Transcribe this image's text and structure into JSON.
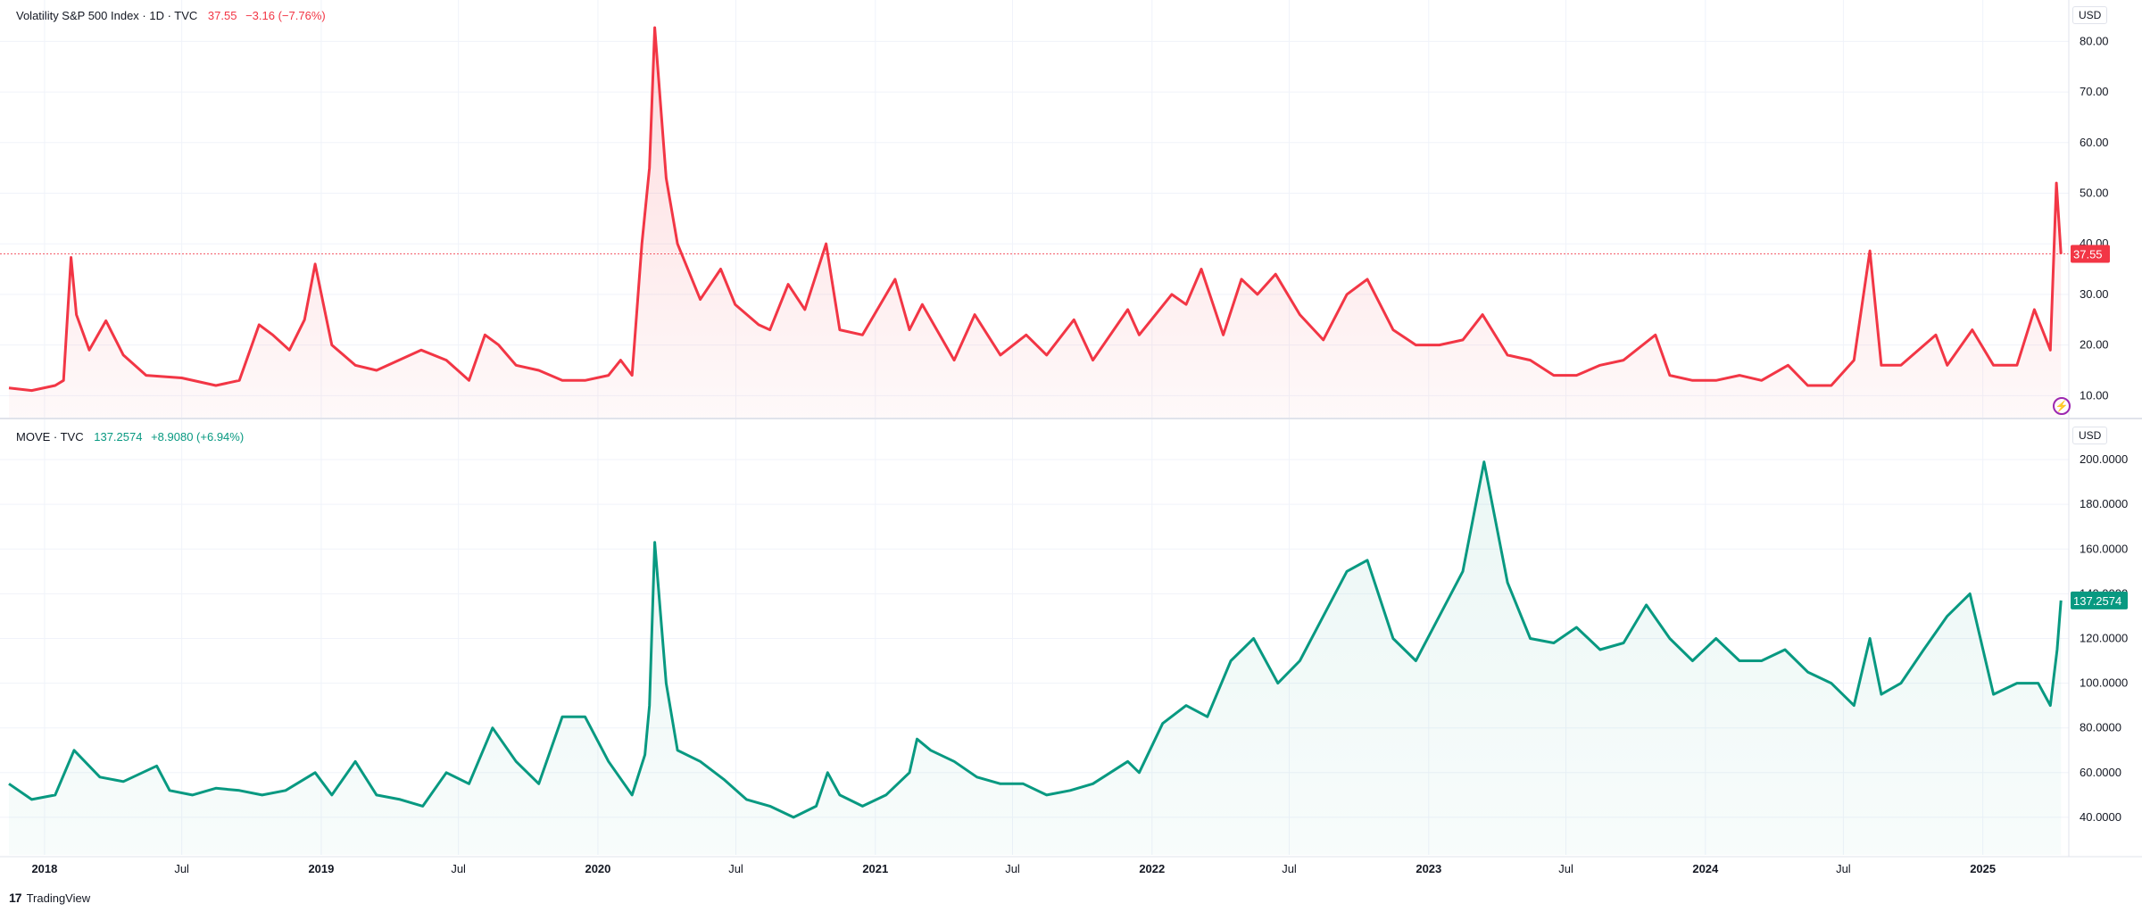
{
  "colors": {
    "vix": "#f23645",
    "move": "#089981",
    "grid": "#f0f3fa",
    "axis_text": "#131722",
    "separator": "#e0e3eb"
  },
  "top_panel": {
    "symbol": "Volatility S&P 500 Index · 1D · TVC",
    "last_value": "37.55",
    "change": "−3.16 (−7.76%)",
    "currency": "USD",
    "price_tag": "37.55",
    "alert_icon": "lightning-icon"
  },
  "bottom_panel": {
    "symbol": "MOVE · TVC",
    "last_value": "137.2574",
    "change": "+8.9080 (+6.94%)",
    "currency": "USD",
    "price_tag": "137.2574"
  },
  "time_axis": [
    "2018",
    "Jul",
    "2019",
    "Jul",
    "2020",
    "Jul",
    "2021",
    "Jul",
    "2022",
    "Jul",
    "2023",
    "Jul",
    "2024",
    "Jul",
    "2025"
  ],
  "brand": "TradingView",
  "chart_data": [
    {
      "type": "area",
      "title": "Volatility S&P 500 Index · 1D · TVC",
      "series": [
        {
          "name": "Volatility S&P 500 Index",
          "x": [
            "2017-11-15",
            "2017-12-15",
            "2018-01-15",
            "2018-01-26",
            "2018-02-05",
            "2018-02-12",
            "2018-03-01",
            "2018-03-23",
            "2018-04-15",
            "2018-05-15",
            "2018-07-01",
            "2018-08-15",
            "2018-09-15",
            "2018-10-11",
            "2018-10-29",
            "2018-11-20",
            "2018-12-10",
            "2018-12-24",
            "2019-01-15",
            "2019-02-15",
            "2019-03-15",
            "2019-05-13",
            "2019-06-15",
            "2019-07-15",
            "2019-08-05",
            "2019-08-23",
            "2019-09-15",
            "2019-10-15",
            "2019-11-15",
            "2019-12-15",
            "2020-01-15",
            "2020-01-31",
            "2020-02-15",
            "2020-02-28",
            "2020-03-09",
            "2020-03-16",
            "2020-03-31",
            "2020-04-15",
            "2020-05-15",
            "2020-06-11",
            "2020-06-30",
            "2020-07-31",
            "2020-08-15",
            "2020-09-08",
            "2020-09-30",
            "2020-10-28",
            "2020-11-15",
            "2020-12-15",
            "2021-01-27",
            "2021-02-15",
            "2021-03-04",
            "2021-04-15",
            "2021-05-12",
            "2021-06-15",
            "2021-07-19",
            "2021-08-15",
            "2021-09-20",
            "2021-10-15",
            "2021-11-30",
            "2021-12-15",
            "2022-01-27",
            "2022-02-15",
            "2022-03-07",
            "2022-04-05",
            "2022-04-29",
            "2022-05-20",
            "2022-06-13",
            "2022-07-15",
            "2022-08-15",
            "2022-09-15",
            "2022-10-12",
            "2022-11-15",
            "2022-12-15",
            "2023-01-15",
            "2023-02-15",
            "2023-03-13",
            "2023-04-15",
            "2023-05-15",
            "2023-06-15",
            "2023-07-15",
            "2023-08-15",
            "2023-09-15",
            "2023-10-27",
            "2023-11-15",
            "2023-12-15",
            "2024-01-15",
            "2024-02-15",
            "2024-03-15",
            "2024-04-19",
            "2024-05-15",
            "2024-06-15",
            "2024-07-15",
            "2024-08-05",
            "2024-08-20",
            "2024-09-15",
            "2024-10-31",
            "2024-11-15",
            "2024-12-18",
            "2025-01-15",
            "2025-02-15",
            "2025-03-10",
            "2025-03-31",
            "2025-04-08",
            "2025-04-14"
          ],
          "values": [
            11.5,
            11,
            12,
            13,
            37.3,
            26,
            19,
            24.8,
            18,
            14,
            13.5,
            12,
            13,
            24,
            22,
            19,
            25,
            36,
            20,
            16,
            15,
            19,
            17,
            13,
            22,
            20,
            16,
            15,
            13,
            13,
            14,
            17,
            14,
            40,
            55,
            82.7,
            53,
            40,
            29,
            35,
            28,
            24,
            23,
            32,
            27,
            40,
            23,
            22,
            33,
            23,
            28,
            17,
            26,
            18,
            22,
            18,
            25,
            17,
            27,
            22,
            30,
            28,
            35,
            22,
            33,
            30,
            34,
            26,
            21,
            30,
            33,
            23,
            20,
            20,
            21,
            26,
            18,
            17,
            14,
            14,
            16,
            17,
            22,
            14,
            13,
            13,
            14,
            13,
            16,
            12,
            12,
            17,
            38.6,
            16,
            16,
            22,
            16,
            23,
            16,
            16,
            27,
            19,
            52,
            38
          ]
        }
      ],
      "y_axis_ticks": [
        "10.00",
        "20.00",
        "30.00",
        "40.00",
        "50.00",
        "60.00",
        "70.00",
        "80.00"
      ],
      "ylim": [
        6,
        85
      ],
      "grid": true
    },
    {
      "type": "area",
      "title": "MOVE · TVC",
      "series": [
        {
          "name": "MOVE",
          "x": [
            "2017-11-15",
            "2017-12-15",
            "2018-01-15",
            "2018-02-09",
            "2018-03-15",
            "2018-04-15",
            "2018-05-29",
            "2018-06-15",
            "2018-07-15",
            "2018-08-15",
            "2018-09-15",
            "2018-10-15",
            "2018-11-15",
            "2018-12-24",
            "2019-01-15",
            "2019-02-15",
            "2019-03-15",
            "2019-04-15",
            "2019-05-15",
            "2019-06-15",
            "2019-07-15",
            "2019-08-15",
            "2019-09-15",
            "2019-10-15",
            "2019-11-15",
            "2019-12-15",
            "2020-01-15",
            "2020-02-15",
            "2020-03-03",
            "2020-03-09",
            "2020-03-16",
            "2020-03-31",
            "2020-04-15",
            "2020-05-15",
            "2020-06-15",
            "2020-07-15",
            "2020-08-15",
            "2020-09-15",
            "2020-10-15",
            "2020-10-30",
            "2020-11-15",
            "2020-12-15",
            "2021-01-15",
            "2021-02-15",
            "2021-02-25",
            "2021-03-15",
            "2021-04-15",
            "2021-05-15",
            "2021-06-15",
            "2021-07-15",
            "2021-08-15",
            "2021-09-15",
            "2021-10-15",
            "2021-11-30",
            "2021-12-15",
            "2022-01-15",
            "2022-02-15",
            "2022-03-15",
            "2022-04-15",
            "2022-05-15",
            "2022-06-16",
            "2022-07-15",
            "2022-08-15",
            "2022-09-15",
            "2022-10-12",
            "2022-11-15",
            "2022-12-15",
            "2023-01-15",
            "2023-02-15",
            "2023-03-15",
            "2023-04-15",
            "2023-05-15",
            "2023-06-15",
            "2023-07-15",
            "2023-08-15",
            "2023-09-15",
            "2023-10-15",
            "2023-11-15",
            "2023-12-15",
            "2024-01-15",
            "2024-02-15",
            "2024-03-15",
            "2024-04-15",
            "2024-05-15",
            "2024-06-15",
            "2024-07-15",
            "2024-08-05",
            "2024-08-20",
            "2024-09-15",
            "2024-10-15",
            "2024-11-15",
            "2024-12-15",
            "2025-01-15",
            "2025-02-15",
            "2025-03-15",
            "2025-03-31",
            "2025-04-09",
            "2025-04-14"
          ],
          "values": [
            55,
            48,
            50,
            70,
            58,
            56,
            63,
            52,
            50,
            53,
            52,
            50,
            52,
            60,
            50,
            65,
            50,
            48,
            45,
            60,
            55,
            80,
            65,
            55,
            85,
            85,
            65,
            50,
            68,
            90,
            163,
            100,
            70,
            65,
            57,
            48,
            45,
            40,
            45,
            60,
            50,
            45,
            50,
            60,
            75,
            70,
            65,
            58,
            55,
            55,
            50,
            52,
            55,
            65,
            60,
            82,
            90,
            85,
            110,
            120,
            100,
            110,
            130,
            150,
            155,
            120,
            110,
            130,
            150,
            199,
            145,
            120,
            118,
            125,
            115,
            118,
            135,
            120,
            110,
            120,
            110,
            110,
            115,
            105,
            100,
            90,
            120,
            95,
            100,
            115,
            130,
            140,
            95,
            100,
            100,
            90,
            115,
            137
          ]
        }
      ],
      "y_axis_ticks": [
        "40.0000",
        "60.0000",
        "80.0000",
        "100.0000",
        "120.0000",
        "140.0000",
        "160.0000",
        "180.0000",
        "200.0000"
      ],
      "ylim": [
        24,
        210
      ],
      "grid": true
    }
  ]
}
